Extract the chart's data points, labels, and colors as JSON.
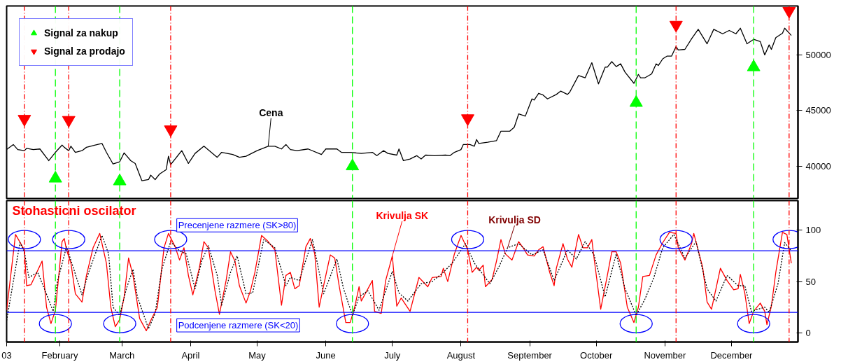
{
  "chart_data": [
    {
      "type": "line",
      "xlim": [
        "2003-01-08",
        "2003-12-31"
      ],
      "ylim": [
        37100,
        54400
      ],
      "yticks": [
        40000,
        45000,
        50000
      ],
      "tick_labels": "y",
      "grid": false,
      "legend": "top left",
      "ref_lines": [
        {
          "axis": "x",
          "value": "2003-01-16",
          "color": "#ff0000",
          "line_style": "dashdot"
        },
        {
          "axis": "x",
          "value": "2003-01-30",
          "color": "#00ff00",
          "line_style": "dashed"
        },
        {
          "axis": "x",
          "value": "2003-02-05",
          "color": "#ff0000",
          "line_style": "dashdot"
        },
        {
          "axis": "x",
          "value": "2003-02-28",
          "color": "#00ff00",
          "line_style": "dashed"
        },
        {
          "axis": "x",
          "value": "2003-03-23",
          "color": "#ff0000",
          "line_style": "dashdot"
        },
        {
          "axis": "x",
          "value": "2003-06-13",
          "color": "#00ff00",
          "line_style": "dashed"
        },
        {
          "axis": "x",
          "value": "2003-08-04",
          "color": "#ff0000",
          "line_style": "dashdot"
        },
        {
          "axis": "x",
          "value": "2003-10-19",
          "color": "#00ff00",
          "line_style": "dashed"
        },
        {
          "axis": "x",
          "value": "2003-11-06",
          "color": "#ff0000",
          "line_style": "dashdot"
        },
        {
          "axis": "x",
          "value": "2003-12-11",
          "color": "#00ff00",
          "line_style": "dashed"
        },
        {
          "axis": "x",
          "value": "2003-12-27",
          "color": "#ff0000",
          "line_style": "dashdot"
        }
      ],
      "series": [
        {
          "name": "Cena",
          "color": "#000000",
          "line_style": "solid",
          "x": [
            "2003-01-08",
            "2003-01-11",
            "2003-01-13",
            "2003-01-16",
            "2003-01-17",
            "2003-01-20",
            "2003-01-23",
            "2003-01-27",
            "2003-01-30",
            "2003-02-02",
            "2003-02-03",
            "2003-02-05",
            "2003-02-06",
            "2003-02-08",
            "2003-02-11",
            "2003-02-13",
            "2003-02-17",
            "2003-02-20",
            "2003-02-22",
            "2003-02-25",
            "2003-02-28",
            "2003-03-02",
            "2003-03-05",
            "2003-03-07",
            "2003-03-10",
            "2003-03-13",
            "2003-03-14",
            "2003-03-16",
            "2003-03-18",
            "2003-03-21",
            "2003-03-22",
            "2003-03-23",
            "2003-03-25",
            "2003-03-28",
            "2003-03-31",
            "2003-04-03",
            "2003-04-07",
            "2003-04-13",
            "2003-04-15",
            "2003-04-20",
            "2003-04-23",
            "2003-04-26",
            "2003-05-01",
            "2003-05-06",
            "2003-05-09",
            "2003-05-12",
            "2003-05-14",
            "2003-05-16",
            "2003-05-19",
            "2003-05-24",
            "2003-05-30",
            "2003-06-01",
            "2003-06-06",
            "2003-06-08",
            "2003-06-12",
            "2003-06-17",
            "2003-06-22",
            "2003-06-24",
            "2003-06-27",
            "2003-06-29",
            "2003-07-03",
            "2003-07-04",
            "2003-07-06",
            "2003-07-09",
            "2003-07-12",
            "2003-07-14",
            "2003-07-16",
            "2003-07-20",
            "2003-07-25",
            "2003-07-27",
            "2003-07-29",
            "2003-08-01",
            "2003-08-02",
            "2003-08-05",
            "2003-08-07",
            "2003-08-08",
            "2003-08-09",
            "2003-08-13",
            "2003-08-17",
            "2003-08-19",
            "2003-08-23",
            "2003-08-25",
            "2003-08-27",
            "2003-08-30",
            "2003-09-02",
            "2003-09-03",
            "2003-09-05",
            "2003-09-07",
            "2003-09-09",
            "2003-09-13",
            "2003-09-15",
            "2003-09-18",
            "2003-09-19",
            "2003-09-23",
            "2003-09-26",
            "2003-09-29",
            "2003-10-02",
            "2003-10-05",
            "2003-10-06",
            "2003-10-08",
            "2003-10-10",
            "2003-10-12",
            "2003-10-14",
            "2003-10-18",
            "2003-10-20",
            "2003-10-21",
            "2003-10-23",
            "2003-10-26",
            "2003-10-28",
            "2003-10-29",
            "2003-10-31",
            "2003-11-02",
            "2003-11-04",
            "2003-11-06",
            "2003-11-07",
            "2003-11-10",
            "2003-11-13",
            "2003-11-16",
            "2003-11-20",
            "2003-11-23",
            "2003-11-27",
            "2003-11-30",
            "2003-12-03",
            "2003-12-05",
            "2003-12-08",
            "2003-12-11",
            "2003-12-14",
            "2003-12-16",
            "2003-12-18",
            "2003-12-19",
            "2003-12-21",
            "2003-12-24",
            "2003-12-25",
            "2003-12-28"
          ],
          "values": [
            41500,
            41950,
            41500,
            41400,
            41600,
            41500,
            41550,
            40500,
            41250,
            41900,
            41700,
            41400,
            41800,
            41250,
            41400,
            41700,
            41900,
            42050,
            41250,
            40200,
            40400,
            41200,
            40500,
            40250,
            38700,
            38800,
            39200,
            38800,
            39300,
            39700,
            40900,
            40150,
            40650,
            41400,
            40250,
            41150,
            41800,
            40800,
            41250,
            41050,
            40800,
            40900,
            41400,
            41800,
            41800,
            41550,
            41950,
            41500,
            41400,
            41550,
            41050,
            41550,
            41550,
            41250,
            41250,
            41150,
            41250,
            40950,
            41400,
            41150,
            41000,
            41550,
            40500,
            40650,
            40950,
            40650,
            41000,
            40950,
            41000,
            40950,
            41250,
            41500,
            41950,
            41950,
            41800,
            42400,
            42050,
            42150,
            42300,
            43150,
            43150,
            43500,
            44700,
            44500,
            46050,
            45950,
            46550,
            46400,
            46050,
            46450,
            46750,
            46450,
            46650,
            48150,
            47950,
            49300,
            47400,
            48900,
            48900,
            49400,
            48950,
            49200,
            48450,
            47450,
            48250,
            47950,
            47950,
            48300,
            49200,
            49050,
            49650,
            49900,
            49900,
            50750,
            50450,
            50500,
            51450,
            52300,
            51000,
            52300,
            51900,
            52200,
            51900,
            52400,
            51000,
            51400,
            51200,
            50000,
            50900,
            50500,
            51550,
            51950,
            52400,
            51750
          ]
        },
        {
          "name": "Signal za nakup",
          "type": "scatter",
          "marker": "triangle",
          "color": "#00ff00",
          "x": [
            "2003-01-30",
            "2003-02-28",
            "2003-06-13",
            "2003-10-19",
            "2003-12-11"
          ],
          "values": [
            38900,
            38650,
            40000,
            45700,
            48900
          ]
        },
        {
          "name": "Signal za prodajo",
          "type": "scatter",
          "marker": "triangle",
          "color": "#ff0000",
          "x": [
            "2003-01-16",
            "2003-02-05",
            "2003-03-23",
            "2003-08-04",
            "2003-11-06",
            "2003-12-27"
          ],
          "values": [
            44250,
            44150,
            43300,
            44300,
            52700,
            53950
          ]
        }
      ]
    },
    {
      "type": "line",
      "title": "Stohasticni oscilator",
      "xlim": [
        "2003-01-08",
        "2003-12-31"
      ],
      "ylim": [
        -9,
        129
      ],
      "yticks": [
        0,
        50,
        100
      ],
      "grid": false,
      "xticks": [
        {
          "value": "2003-01-08",
          "label": "03"
        },
        {
          "value": "2003-02-01",
          "label": "February"
        },
        {
          "value": "2003-03-01",
          "label": "March"
        },
        {
          "value": "2003-04-01",
          "label": "April"
        },
        {
          "value": "2003-05-01",
          "label": "May"
        },
        {
          "value": "2003-06-01",
          "label": "June"
        },
        {
          "value": "2003-07-01",
          "label": "July"
        },
        {
          "value": "2003-08-01",
          "label": "August"
        },
        {
          "value": "2003-09-01",
          "label": "September"
        },
        {
          "value": "2003-10-01",
          "label": "October"
        },
        {
          "value": "2003-11-01",
          "label": "November"
        },
        {
          "value": "2003-12-01",
          "label": "December"
        }
      ],
      "ref_lines": [
        {
          "axis": "y",
          "value": 80,
          "label": "Precenjene razmere (SK>80)",
          "color": "#0000ff",
          "line_style": "solid"
        },
        {
          "axis": "y",
          "value": 20,
          "label": "Podcenjene razmere (SK<20)",
          "color": "#0000ff",
          "line_style": "solid"
        },
        {
          "axis": "x",
          "value": "2003-01-16",
          "color": "#ff0000",
          "line_style": "dashdot"
        },
        {
          "axis": "x",
          "value": "2003-01-30",
          "color": "#00ff00",
          "line_style": "dashed"
        },
        {
          "axis": "x",
          "value": "2003-02-05",
          "color": "#ff0000",
          "line_style": "dashdot"
        },
        {
          "axis": "x",
          "value": "2003-02-28",
          "color": "#00ff00",
          "line_style": "dashed"
        },
        {
          "axis": "x",
          "value": "2003-03-23",
          "color": "#ff0000",
          "line_style": "dashdot"
        },
        {
          "axis": "x",
          "value": "2003-06-13",
          "color": "#00ff00",
          "line_style": "dashed"
        },
        {
          "axis": "x",
          "value": "2003-08-04",
          "color": "#ff0000",
          "line_style": "dashdot"
        },
        {
          "axis": "x",
          "value": "2003-10-19",
          "color": "#00ff00",
          "line_style": "dashed"
        },
        {
          "axis": "x",
          "value": "2003-11-06",
          "color": "#ff0000",
          "line_style": "dashdot"
        },
        {
          "axis": "x",
          "value": "2003-12-11",
          "color": "#00ff00",
          "line_style": "dashed"
        },
        {
          "axis": "x",
          "value": "2003-12-27",
          "color": "#ff0000",
          "line_style": "dashdot"
        }
      ],
      "series": [
        {
          "name": "Krivulja SK",
          "color": "#ff0000",
          "line_style": "solid",
          "x": [
            "2003-01-08",
            "2003-01-12",
            "2003-01-16",
            "2003-01-17",
            "2003-01-19",
            "2003-01-24",
            "2003-01-26",
            "2003-01-28",
            "2003-01-30",
            "2003-02-02",
            "2003-02-03",
            "2003-02-04",
            "2003-02-06",
            "2003-02-08",
            "2003-02-11",
            "2003-02-13",
            "2003-02-16",
            "2003-02-19",
            "2003-02-22",
            "2003-02-24",
            "2003-02-26",
            "2003-02-28",
            "2003-03-02",
            "2003-03-04",
            "2003-03-06",
            "2003-03-09",
            "2003-03-12",
            "2003-03-14",
            "2003-03-17",
            "2003-03-20",
            "2003-03-22",
            "2003-03-25",
            "2003-03-27",
            "2003-03-29",
            "2003-03-31",
            "2003-04-02",
            "2003-04-05",
            "2003-04-07",
            "2003-04-09",
            "2003-04-12",
            "2003-04-14",
            "2003-04-17",
            "2003-04-19",
            "2003-04-21",
            "2003-04-23",
            "2003-04-26",
            "2003-04-28",
            "2003-04-30",
            "2003-05-03",
            "2003-05-06",
            "2003-05-09",
            "2003-05-12",
            "2003-05-14",
            "2003-05-16",
            "2003-05-18",
            "2003-05-20",
            "2003-05-23",
            "2003-05-25",
            "2003-05-27",
            "2003-05-29",
            "2003-05-31",
            "2003-06-03",
            "2003-06-05",
            "2003-06-07",
            "2003-06-10",
            "2003-06-12",
            "2003-06-14",
            "2003-06-16",
            "2003-06-17",
            "2003-06-22",
            "2003-06-23",
            "2003-06-26",
            "2003-06-28",
            "2003-07-01",
            "2003-07-03",
            "2003-07-05",
            "2003-07-09",
            "2003-07-13",
            "2003-07-17",
            "2003-07-19",
            "2003-07-23",
            "2003-07-24",
            "2003-07-26",
            "2003-07-29",
            "2003-08-01",
            "2003-08-04",
            "2003-08-06",
            "2003-08-08",
            "2003-08-09",
            "2003-08-11",
            "2003-08-12",
            "2003-08-15",
            "2003-08-17",
            "2003-08-19",
            "2003-08-21",
            "2003-08-24",
            "2003-08-27",
            "2003-08-29",
            "2003-08-31",
            "2003-09-03",
            "2003-09-05",
            "2003-09-07",
            "2003-09-10",
            "2003-09-12",
            "2003-09-13",
            "2003-09-16",
            "2003-09-18",
            "2003-09-20",
            "2003-09-23",
            "2003-09-25",
            "2003-09-27",
            "2003-09-29",
            "2003-09-30",
            "2003-10-03",
            "2003-10-06",
            "2003-10-08",
            "2003-10-10",
            "2003-10-12",
            "2003-10-15",
            "2003-10-18",
            "2003-10-20",
            "2003-10-22",
            "2003-10-25",
            "2003-10-28",
            "2003-10-31",
            "2003-11-03",
            "2003-11-06",
            "2003-11-07",
            "2003-11-10",
            "2003-11-13",
            "2003-11-14",
            "2003-11-18",
            "2003-11-20",
            "2003-11-22",
            "2003-11-24",
            "2003-11-26",
            "2003-11-29",
            "2003-12-02",
            "2003-12-04",
            "2003-12-05",
            "2003-12-07",
            "2003-12-09",
            "2003-12-11",
            "2003-12-14",
            "2003-12-16",
            "2003-12-17",
            "2003-12-19",
            "2003-12-21",
            "2003-12-24",
            "2003-12-26",
            "2003-12-28"
          ],
          "values": [
            22,
            96,
            81,
            46,
            47,
            70,
            25,
            9,
            22,
            89,
            92,
            81,
            68,
            38,
            30,
            56,
            83,
            97,
            68,
            25,
            6,
            13,
            35,
            73,
            56,
            14,
            2,
            12,
            25,
            83,
            97,
            84,
            71,
            83,
            56,
            37,
            64,
            89,
            83,
            41,
            18,
            51,
            79,
            70,
            46,
            29,
            41,
            59,
            95,
            89,
            81,
            27,
            56,
            59,
            43,
            46,
            84,
            92,
            77,
            25,
            46,
            76,
            73,
            46,
            10,
            10,
            25,
            45,
            31,
            51,
            21,
            19,
            51,
            75,
            26,
            34,
            21,
            54,
            45,
            54,
            55,
            63,
            50,
            77,
            95,
            81,
            59,
            64,
            61,
            66,
            45,
            52,
            70,
            91,
            77,
            71,
            89,
            83,
            76,
            75,
            81,
            84,
            59,
            46,
            63,
            87,
            72,
            64,
            96,
            83,
            83,
            91,
            73,
            23,
            56,
            79,
            79,
            68,
            25,
            10,
            25,
            55,
            56,
            76,
            88,
            98,
            97,
            83,
            71,
            87,
            97,
            64,
            30,
            23,
            43,
            63,
            51,
            42,
            43,
            57,
            39,
            9,
            21,
            29,
            21,
            8,
            26,
            59,
            98,
            96,
            68
          ]
        },
        {
          "name": "Krivulja SD",
          "color": "#000000",
          "line_style": "dotted",
          "x": [
            "2003-01-08",
            "2003-01-14",
            "2003-01-16",
            "2003-01-18",
            "2003-01-22",
            "2003-01-25",
            "2003-01-29",
            "2003-01-31",
            "2003-02-04",
            "2003-02-07",
            "2003-02-11",
            "2003-02-14",
            "2003-02-20",
            "2003-02-23",
            "2003-02-25",
            "2003-02-28",
            "2003-03-03",
            "2003-03-06",
            "2003-03-08",
            "2003-03-13",
            "2003-03-16",
            "2003-03-19",
            "2003-03-23",
            "2003-03-27",
            "2003-03-30",
            "2003-04-03",
            "2003-04-06",
            "2003-04-09",
            "2003-04-13",
            "2003-04-15",
            "2003-04-19",
            "2003-04-22",
            "2003-04-26",
            "2003-04-29",
            "2003-05-04",
            "2003-05-09",
            "2003-05-14",
            "2003-05-16",
            "2003-05-20",
            "2003-05-26",
            "2003-05-31",
            "2003-06-06",
            "2003-06-09",
            "2003-06-13",
            "2003-06-16",
            "2003-06-20",
            "2003-06-25",
            "2003-07-01",
            "2003-07-04",
            "2003-07-08",
            "2003-07-14",
            "2003-07-19",
            "2003-07-24",
            "2003-07-28",
            "2003-08-03",
            "2003-08-07",
            "2003-08-14",
            "2003-08-18",
            "2003-08-22",
            "2003-08-27",
            "2003-09-02",
            "2003-09-07",
            "2003-09-12",
            "2003-09-18",
            "2003-09-22",
            "2003-09-26",
            "2003-09-30",
            "2003-10-05",
            "2003-10-10",
            "2003-10-14",
            "2003-10-19",
            "2003-10-23",
            "2003-10-27",
            "2003-10-31",
            "2003-11-05",
            "2003-11-10",
            "2003-11-15",
            "2003-11-20",
            "2003-11-24",
            "2003-11-29",
            "2003-12-04",
            "2003-12-07",
            "2003-12-10",
            "2003-12-16",
            "2003-12-18",
            "2003-12-22",
            "2003-12-25",
            "2003-12-28"
          ],
          "values": [
            12,
            88,
            79,
            54,
            59,
            43,
            21,
            51,
            84,
            64,
            37,
            59,
            95,
            77,
            25,
            17,
            43,
            62,
            35,
            4,
            19,
            62,
            89,
            80,
            77,
            43,
            70,
            85,
            56,
            27,
            59,
            75,
            38,
            39,
            91,
            83,
            46,
            54,
            51,
            91,
            38,
            72,
            43,
            17,
            35,
            41,
            22,
            60,
            39,
            31,
            48,
            50,
            59,
            68,
            87,
            68,
            48,
            64,
            83,
            87,
            76,
            81,
            51,
            81,
            72,
            89,
            76,
            35,
            77,
            43,
            17,
            33,
            54,
            83,
            96,
            73,
            89,
            43,
            31,
            56,
            46,
            46,
            21,
            25,
            20,
            48,
            88,
            80
          ]
        }
      ]
    }
  ]
}
